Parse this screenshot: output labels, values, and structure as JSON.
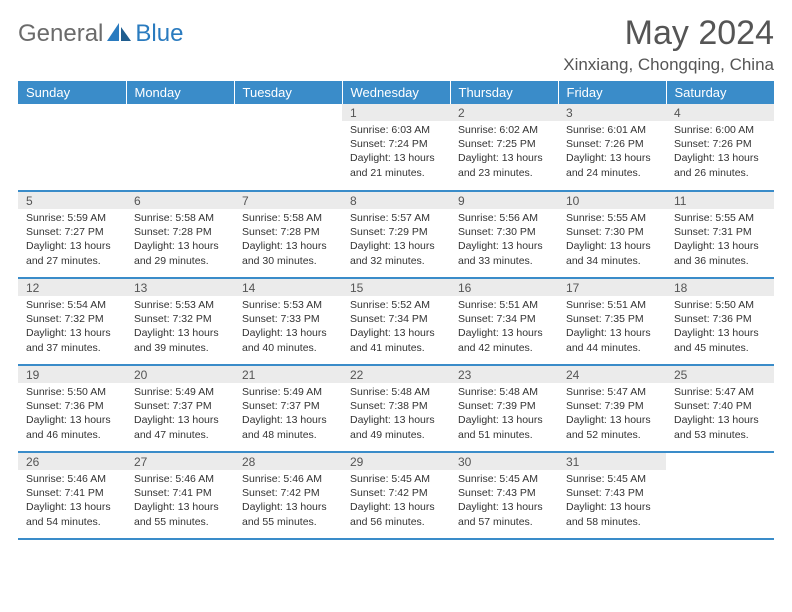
{
  "brand": {
    "general": "General",
    "blue": "Blue"
  },
  "title": "May 2024",
  "location": "Xinxiang, Chongqing, China",
  "colors": {
    "header_bg": "#3a8cc9",
    "header_text": "#ffffff",
    "daynum_bg": "#ebebeb",
    "text": "#555555",
    "logo_gray": "#6b6b6b",
    "logo_blue": "#2a7bbf"
  },
  "weekdays": [
    "Sunday",
    "Monday",
    "Tuesday",
    "Wednesday",
    "Thursday",
    "Friday",
    "Saturday"
  ],
  "startOffset": 3,
  "days": [
    {
      "n": 1,
      "sunrise": "6:03 AM",
      "sunset": "7:24 PM",
      "daylight": "13 hours and 21 minutes."
    },
    {
      "n": 2,
      "sunrise": "6:02 AM",
      "sunset": "7:25 PM",
      "daylight": "13 hours and 23 minutes."
    },
    {
      "n": 3,
      "sunrise": "6:01 AM",
      "sunset": "7:26 PM",
      "daylight": "13 hours and 24 minutes."
    },
    {
      "n": 4,
      "sunrise": "6:00 AM",
      "sunset": "7:26 PM",
      "daylight": "13 hours and 26 minutes."
    },
    {
      "n": 5,
      "sunrise": "5:59 AM",
      "sunset": "7:27 PM",
      "daylight": "13 hours and 27 minutes."
    },
    {
      "n": 6,
      "sunrise": "5:58 AM",
      "sunset": "7:28 PM",
      "daylight": "13 hours and 29 minutes."
    },
    {
      "n": 7,
      "sunrise": "5:58 AM",
      "sunset": "7:28 PM",
      "daylight": "13 hours and 30 minutes."
    },
    {
      "n": 8,
      "sunrise": "5:57 AM",
      "sunset": "7:29 PM",
      "daylight": "13 hours and 32 minutes."
    },
    {
      "n": 9,
      "sunrise": "5:56 AM",
      "sunset": "7:30 PM",
      "daylight": "13 hours and 33 minutes."
    },
    {
      "n": 10,
      "sunrise": "5:55 AM",
      "sunset": "7:30 PM",
      "daylight": "13 hours and 34 minutes."
    },
    {
      "n": 11,
      "sunrise": "5:55 AM",
      "sunset": "7:31 PM",
      "daylight": "13 hours and 36 minutes."
    },
    {
      "n": 12,
      "sunrise": "5:54 AM",
      "sunset": "7:32 PM",
      "daylight": "13 hours and 37 minutes."
    },
    {
      "n": 13,
      "sunrise": "5:53 AM",
      "sunset": "7:32 PM",
      "daylight": "13 hours and 39 minutes."
    },
    {
      "n": 14,
      "sunrise": "5:53 AM",
      "sunset": "7:33 PM",
      "daylight": "13 hours and 40 minutes."
    },
    {
      "n": 15,
      "sunrise": "5:52 AM",
      "sunset": "7:34 PM",
      "daylight": "13 hours and 41 minutes."
    },
    {
      "n": 16,
      "sunrise": "5:51 AM",
      "sunset": "7:34 PM",
      "daylight": "13 hours and 42 minutes."
    },
    {
      "n": 17,
      "sunrise": "5:51 AM",
      "sunset": "7:35 PM",
      "daylight": "13 hours and 44 minutes."
    },
    {
      "n": 18,
      "sunrise": "5:50 AM",
      "sunset": "7:36 PM",
      "daylight": "13 hours and 45 minutes."
    },
    {
      "n": 19,
      "sunrise": "5:50 AM",
      "sunset": "7:36 PM",
      "daylight": "13 hours and 46 minutes."
    },
    {
      "n": 20,
      "sunrise": "5:49 AM",
      "sunset": "7:37 PM",
      "daylight": "13 hours and 47 minutes."
    },
    {
      "n": 21,
      "sunrise": "5:49 AM",
      "sunset": "7:37 PM",
      "daylight": "13 hours and 48 minutes."
    },
    {
      "n": 22,
      "sunrise": "5:48 AM",
      "sunset": "7:38 PM",
      "daylight": "13 hours and 49 minutes."
    },
    {
      "n": 23,
      "sunrise": "5:48 AM",
      "sunset": "7:39 PM",
      "daylight": "13 hours and 51 minutes."
    },
    {
      "n": 24,
      "sunrise": "5:47 AM",
      "sunset": "7:39 PM",
      "daylight": "13 hours and 52 minutes."
    },
    {
      "n": 25,
      "sunrise": "5:47 AM",
      "sunset": "7:40 PM",
      "daylight": "13 hours and 53 minutes."
    },
    {
      "n": 26,
      "sunrise": "5:46 AM",
      "sunset": "7:41 PM",
      "daylight": "13 hours and 54 minutes."
    },
    {
      "n": 27,
      "sunrise": "5:46 AM",
      "sunset": "7:41 PM",
      "daylight": "13 hours and 55 minutes."
    },
    {
      "n": 28,
      "sunrise": "5:46 AM",
      "sunset": "7:42 PM",
      "daylight": "13 hours and 55 minutes."
    },
    {
      "n": 29,
      "sunrise": "5:45 AM",
      "sunset": "7:42 PM",
      "daylight": "13 hours and 56 minutes."
    },
    {
      "n": 30,
      "sunrise": "5:45 AM",
      "sunset": "7:43 PM",
      "daylight": "13 hours and 57 minutes."
    },
    {
      "n": 31,
      "sunrise": "5:45 AM",
      "sunset": "7:43 PM",
      "daylight": "13 hours and 58 minutes."
    }
  ],
  "labels": {
    "sunrise": "Sunrise:",
    "sunset": "Sunset:",
    "daylight": "Daylight:"
  }
}
